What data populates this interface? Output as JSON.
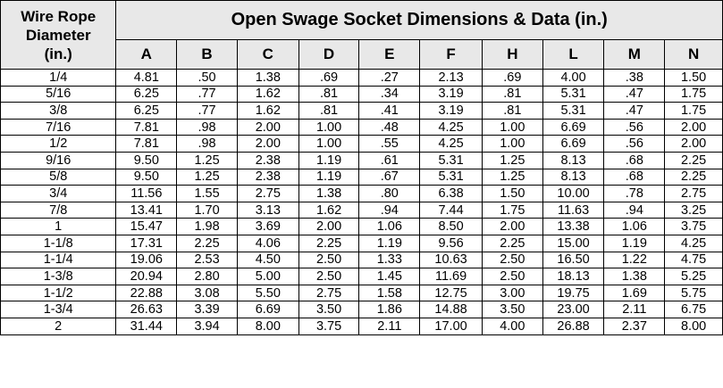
{
  "header": {
    "corner_lines": [
      "Wire Rope",
      "Diameter",
      "(in.)"
    ],
    "title": "Open Swage Socket Dimensions & Data (in.)",
    "columns": [
      "A",
      "B",
      "C",
      "D",
      "E",
      "F",
      "H",
      "L",
      "M",
      "N"
    ]
  },
  "rows": [
    {
      "dia": "1/4",
      "v": [
        "4.81",
        ".50",
        "1.38",
        ".69",
        ".27",
        "2.13",
        ".69",
        "4.00",
        ".38",
        "1.50"
      ]
    },
    {
      "dia": "5/16",
      "v": [
        "6.25",
        ".77",
        "1.62",
        ".81",
        ".34",
        "3.19",
        ".81",
        "5.31",
        ".47",
        "1.75"
      ]
    },
    {
      "dia": "3/8",
      "v": [
        "6.25",
        ".77",
        "1.62",
        ".81",
        ".41",
        "3.19",
        ".81",
        "5.31",
        ".47",
        "1.75"
      ]
    },
    {
      "dia": "7/16",
      "v": [
        "7.81",
        ".98",
        "2.00",
        "1.00",
        ".48",
        "4.25",
        "1.00",
        "6.69",
        ".56",
        "2.00"
      ]
    },
    {
      "dia": "1/2",
      "v": [
        "7.81",
        ".98",
        "2.00",
        "1.00",
        ".55",
        "4.25",
        "1.00",
        "6.69",
        ".56",
        "2.00"
      ]
    },
    {
      "dia": "9/16",
      "v": [
        "9.50",
        "1.25",
        "2.38",
        "1.19",
        ".61",
        "5.31",
        "1.25",
        "8.13",
        ".68",
        "2.25"
      ]
    },
    {
      "dia": "5/8",
      "v": [
        "9.50",
        "1.25",
        "2.38",
        "1.19",
        ".67",
        "5.31",
        "1.25",
        "8.13",
        ".68",
        "2.25"
      ]
    },
    {
      "dia": "3/4",
      "v": [
        "11.56",
        "1.55",
        "2.75",
        "1.38",
        ".80",
        "6.38",
        "1.50",
        "10.00",
        ".78",
        "2.75"
      ]
    },
    {
      "dia": "7/8",
      "v": [
        "13.41",
        "1.70",
        "3.13",
        "1.62",
        ".94",
        "7.44",
        "1.75",
        "11.63",
        ".94",
        "3.25"
      ]
    },
    {
      "dia": "1",
      "v": [
        "15.47",
        "1.98",
        "3.69",
        "2.00",
        "1.06",
        "8.50",
        "2.00",
        "13.38",
        "1.06",
        "3.75"
      ]
    },
    {
      "dia": "1-1/8",
      "v": [
        "17.31",
        "2.25",
        "4.06",
        "2.25",
        "1.19",
        "9.56",
        "2.25",
        "15.00",
        "1.19",
        "4.25"
      ]
    },
    {
      "dia": "1-1/4",
      "v": [
        "19.06",
        "2.53",
        "4.50",
        "2.50",
        "1.33",
        "10.63",
        "2.50",
        "16.50",
        "1.22",
        "4.75"
      ]
    },
    {
      "dia": "1-3/8",
      "v": [
        "20.94",
        "2.80",
        "5.00",
        "2.50",
        "1.45",
        "11.69",
        "2.50",
        "18.13",
        "1.38",
        "5.25"
      ]
    },
    {
      "dia": "1-1/2",
      "v": [
        "22.88",
        "3.08",
        "5.50",
        "2.75",
        "1.58",
        "12.75",
        "3.00",
        "19.75",
        "1.69",
        "5.75"
      ]
    },
    {
      "dia": "1-3/4",
      "v": [
        "26.63",
        "3.39",
        "6.69",
        "3.50",
        "1.86",
        "14.88",
        "3.50",
        "23.00",
        "2.11",
        "6.75"
      ]
    },
    {
      "dia": "2",
      "v": [
        "31.44",
        "3.94",
        "8.00",
        "3.75",
        "2.11",
        "17.00",
        "4.00",
        "26.88",
        "2.37",
        "8.00"
      ]
    }
  ]
}
